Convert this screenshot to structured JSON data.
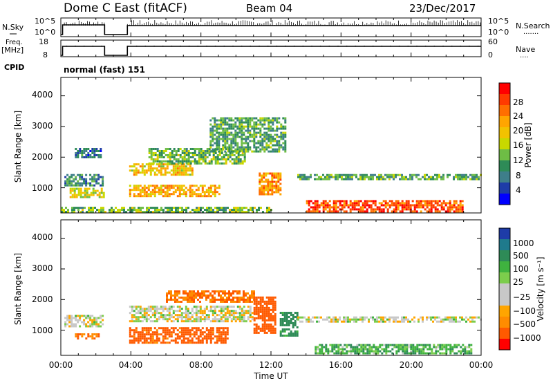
{
  "header": {
    "title": "Dome C East (fitACF)",
    "beam": "Beam 04",
    "date": "23/Dec/2017"
  },
  "nsky": {
    "label": "N.Sky",
    "ticks_left": [
      "10^5",
      "10^0"
    ],
    "ticks_right": [
      "10^5",
      "10^0"
    ],
    "right_label": "N.Search",
    "right_label_dots": "......."
  },
  "freq": {
    "label": "Freq.",
    "unit": "[MHz]",
    "ticks_left": [
      "18",
      "8"
    ],
    "ticks_right": [
      "60",
      "0"
    ],
    "right_label": "Nave",
    "right_label_dots": "...."
  },
  "cpid": {
    "label": "CPID",
    "value": "normal (fast) 151"
  },
  "power_panel": {
    "ylabel": "Slant Range [km]",
    "yticks": [
      "4000",
      "3000",
      "2000",
      "1000"
    ],
    "colorbar": {
      "label": "Power [dB]",
      "ticks": [
        "28",
        "24",
        "20",
        "16",
        "12",
        "8",
        "4"
      ],
      "colors": [
        "#ff0000",
        "#ff3a00",
        "#ff6e00",
        "#ffa500",
        "#f2c200",
        "#c8d800",
        "#6ebd45",
        "#2e8b57",
        "#3e7e8a",
        "#1e3ca8",
        "#0000ff"
      ]
    }
  },
  "velocity_panel": {
    "ylabel": "Slant Range [km]",
    "yticks": [
      "4000",
      "3000",
      "2000",
      "1000"
    ],
    "colorbar": {
      "label": "Velocity [m s⁻¹]",
      "ticks": [
        "1000",
        "500",
        "100",
        "25",
        "−25",
        "−100",
        "−500",
        "−1000"
      ],
      "colors": [
        "#1e3ca8",
        "#1f7a8c",
        "#2e8b57",
        "#3fb33f",
        "#7ccd4c",
        "#c8c8c8",
        "#c8c8c8",
        "#ffa500",
        "#ff8c00",
        "#ff5a00",
        "#ff0000"
      ]
    }
  },
  "xaxis": {
    "label": "Time UT",
    "ticks": [
      "00:00",
      "04:00",
      "08:00",
      "12:00",
      "16:00",
      "20:00",
      "00:00"
    ]
  },
  "chart_data": {
    "type": "heatmap",
    "x_range_hours": [
      0,
      24
    ],
    "y_range_km": [
      180,
      4600
    ],
    "data_gap_hours": [
      2.5,
      3.8
    ],
    "power_regions": [
      {
        "t0": 0.2,
        "t1": 2.4,
        "r0": 1050,
        "r1": 1450,
        "level_db": 8
      },
      {
        "t0": 0.5,
        "t1": 2.4,
        "r0": 700,
        "r1": 1000,
        "level_db": 16
      },
      {
        "t0": 0.8,
        "t1": 2.3,
        "r0": 2000,
        "r1": 2300,
        "level_db": 6
      },
      {
        "t0": 3.9,
        "t1": 7.5,
        "r0": 1400,
        "r1": 1800,
        "level_db": 18
      },
      {
        "t0": 3.9,
        "t1": 9.0,
        "r0": 700,
        "r1": 1100,
        "level_db": 20
      },
      {
        "t0": 5.0,
        "t1": 10.5,
        "r0": 1800,
        "r1": 2300,
        "level_db": 12
      },
      {
        "t0": 8.5,
        "t1": 12.8,
        "r0": 2200,
        "r1": 3300,
        "level_db": 10
      },
      {
        "t0": 11.3,
        "t1": 12.5,
        "r0": 800,
        "r1": 1500,
        "level_db": 22
      },
      {
        "t0": 13.5,
        "t1": 24.0,
        "r0": 1250,
        "r1": 1450,
        "level_db": 10
      },
      {
        "t0": 14.0,
        "t1": 23.0,
        "r0": 250,
        "r1": 600,
        "level_db": 26
      },
      {
        "t0": 0.0,
        "t1": 12.0,
        "r0": 200,
        "r1": 380,
        "level_db": 12
      }
    ],
    "velocity_regions": [
      {
        "t0": 0.2,
        "t1": 2.4,
        "r0": 1150,
        "r1": 1500,
        "v": 0
      },
      {
        "t0": 0.8,
        "t1": 2.3,
        "r0": 700,
        "r1": 900,
        "v": -150
      },
      {
        "t0": 3.9,
        "t1": 9.5,
        "r0": 600,
        "r1": 1100,
        "v": -200
      },
      {
        "t0": 3.9,
        "t1": 11.0,
        "r0": 1300,
        "r1": 1800,
        "v": 0
      },
      {
        "t0": 6.0,
        "t1": 11.0,
        "r0": 1900,
        "r1": 2300,
        "v": -150
      },
      {
        "t0": 11.0,
        "t1": 12.3,
        "r0": 900,
        "r1": 2100,
        "v": -400
      },
      {
        "t0": 12.5,
        "t1": 13.5,
        "r0": 800,
        "r1": 1600,
        "v": 150
      },
      {
        "t0": 13.5,
        "t1": 24.0,
        "r0": 1300,
        "r1": 1450,
        "v": 0
      },
      {
        "t0": 14.5,
        "t1": 23.5,
        "r0": 250,
        "r1": 550,
        "v": 80
      }
    ]
  }
}
